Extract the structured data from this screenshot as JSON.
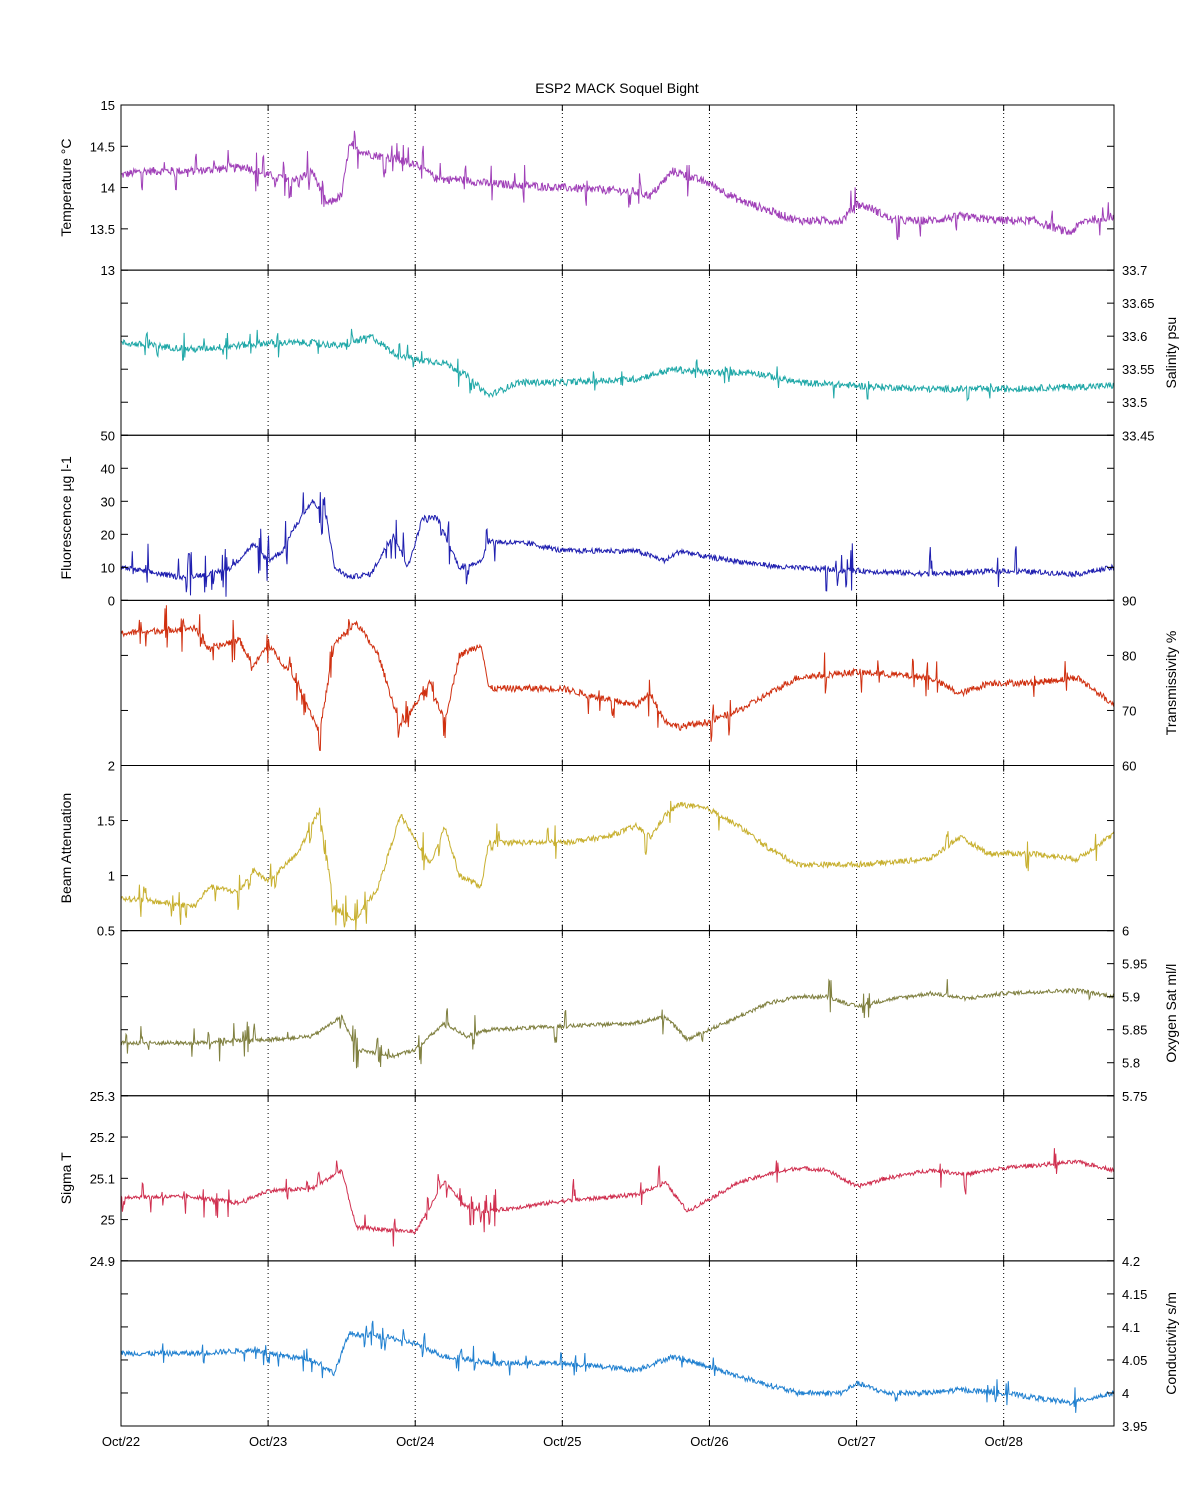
{
  "chart_data": {
    "type": "line",
    "title": "ESP2 MACK  Soquel Bight",
    "x_axis": {
      "type": "date",
      "range": [
        "Oct/22",
        "Oct/28 + 0.75 day"
      ],
      "tick_labels": [
        "Oct/22",
        "Oct/23",
        "Oct/24",
        "Oct/25",
        "Oct/26",
        "Oct/27",
        "Oct/28"
      ],
      "grid": "vertical dotted at each day"
    },
    "panels": [
      {
        "name": "temperature",
        "ylabel": "Temperature °C",
        "side": "left",
        "color": "#a040b8",
        "ylim": [
          13,
          15
        ],
        "ticks": [
          "13",
          "13.5",
          "14",
          "14.5",
          "15"
        ],
        "tick_values": [
          13,
          13.5,
          14,
          14.5,
          15
        ],
        "noise": 0.05,
        "burst_amp": 0.25,
        "keypoints": [
          [
            0,
            14.15
          ],
          [
            0.15,
            14.2
          ],
          [
            0.5,
            14.2
          ],
          [
            0.85,
            14.25
          ],
          [
            1.0,
            14.15
          ],
          [
            1.2,
            14.1
          ],
          [
            1.3,
            14.2
          ],
          [
            1.4,
            13.8
          ],
          [
            1.5,
            13.9
          ],
          [
            1.55,
            14.5
          ],
          [
            1.7,
            14.4
          ],
          [
            1.85,
            14.35
          ],
          [
            2.0,
            14.3
          ],
          [
            2.15,
            14.1
          ],
          [
            2.3,
            14.1
          ],
          [
            2.5,
            14.05
          ],
          [
            3.0,
            14.0
          ],
          [
            3.5,
            13.95
          ],
          [
            3.6,
            13.9
          ],
          [
            3.75,
            14.2
          ],
          [
            4.0,
            14.05
          ],
          [
            4.2,
            13.85
          ],
          [
            4.6,
            13.6
          ],
          [
            4.75,
            13.6
          ],
          [
            4.9,
            13.6
          ],
          [
            5.0,
            13.8
          ],
          [
            5.1,
            13.75
          ],
          [
            5.25,
            13.6
          ],
          [
            5.5,
            13.6
          ],
          [
            5.7,
            13.65
          ],
          [
            6.0,
            13.6
          ],
          [
            6.2,
            13.6
          ],
          [
            6.45,
            13.45
          ],
          [
            6.55,
            13.6
          ],
          [
            6.75,
            13.65
          ]
        ]
      },
      {
        "name": "salinity",
        "ylabel": "Salinity psu",
        "side": "right",
        "color": "#20a8a8",
        "ylim": [
          33.45,
          33.7
        ],
        "ticks": [
          "33.45",
          "33.5",
          "33.55",
          "33.6",
          "33.65",
          "33.7"
        ],
        "tick_values": [
          33.45,
          33.5,
          33.55,
          33.6,
          33.65,
          33.7
        ],
        "noise": 0.005,
        "burst_amp": 0.02,
        "keypoints": [
          [
            0,
            33.59
          ],
          [
            0.5,
            33.58
          ],
          [
            1.0,
            33.59
          ],
          [
            1.3,
            33.59
          ],
          [
            1.5,
            33.585
          ],
          [
            1.7,
            33.6
          ],
          [
            1.85,
            33.575
          ],
          [
            2.0,
            33.565
          ],
          [
            2.2,
            33.56
          ],
          [
            2.35,
            33.54
          ],
          [
            2.5,
            33.51
          ],
          [
            2.7,
            33.53
          ],
          [
            3.0,
            33.53
          ],
          [
            3.5,
            33.535
          ],
          [
            3.75,
            33.55
          ],
          [
            4.0,
            33.545
          ],
          [
            4.3,
            33.545
          ],
          [
            4.6,
            33.53
          ],
          [
            5.0,
            33.525
          ],
          [
            5.5,
            33.52
          ],
          [
            6.0,
            33.52
          ],
          [
            6.75,
            33.525
          ]
        ]
      },
      {
        "name": "fluorescence",
        "ylabel": "Fluorescence µg l-1",
        "side": "left",
        "color": "#2020b0",
        "ylim": [
          0,
          50
        ],
        "ticks": [
          "0",
          "10",
          "20",
          "30",
          "40",
          "50"
        ],
        "tick_values": [
          0,
          10,
          20,
          30,
          40,
          50
        ],
        "noise": 0.8,
        "burst_amp": 8,
        "keypoints": [
          [
            0,
            10
          ],
          [
            0.4,
            7
          ],
          [
            0.6,
            8
          ],
          [
            0.75,
            10
          ],
          [
            0.9,
            17
          ],
          [
            1.0,
            12
          ],
          [
            1.1,
            15
          ],
          [
            1.15,
            20
          ],
          [
            1.3,
            30
          ],
          [
            1.4,
            25
          ],
          [
            1.45,
            10
          ],
          [
            1.55,
            7
          ],
          [
            1.7,
            8
          ],
          [
            1.85,
            20
          ],
          [
            1.95,
            10
          ],
          [
            2.05,
            25
          ],
          [
            2.15,
            25
          ],
          [
            2.3,
            10
          ],
          [
            2.45,
            12
          ],
          [
            2.5,
            18
          ],
          [
            2.8,
            17
          ],
          [
            3.0,
            15
          ],
          [
            3.5,
            15
          ],
          [
            3.7,
            12
          ],
          [
            3.8,
            15
          ],
          [
            4.0,
            13
          ],
          [
            4.5,
            10
          ],
          [
            5.0,
            9
          ],
          [
            5.5,
            8
          ],
          [
            6.0,
            9
          ],
          [
            6.5,
            8
          ],
          [
            6.75,
            10
          ]
        ]
      },
      {
        "name": "transmissivity",
        "ylabel": "Transmissivity %",
        "side": "right",
        "color": "#d03010",
        "ylim": [
          60,
          90
        ],
        "ticks": [
          "60",
          "70",
          "80",
          "90"
        ],
        "tick_values": [
          60,
          70,
          80,
          90
        ],
        "noise": 0.6,
        "burst_amp": 4,
        "keypoints": [
          [
            0,
            84
          ],
          [
            0.5,
            85
          ],
          [
            0.6,
            81
          ],
          [
            0.8,
            83
          ],
          [
            0.9,
            78
          ],
          [
            1.0,
            82
          ],
          [
            1.2,
            75
          ],
          [
            1.35,
            66
          ],
          [
            1.45,
            82
          ],
          [
            1.6,
            86
          ],
          [
            1.75,
            80
          ],
          [
            1.9,
            67
          ],
          [
            2.1,
            75
          ],
          [
            2.2,
            68
          ],
          [
            2.3,
            80
          ],
          [
            2.45,
            82
          ],
          [
            2.5,
            74
          ],
          [
            3.0,
            74
          ],
          [
            3.3,
            72
          ],
          [
            3.5,
            71
          ],
          [
            3.6,
            73
          ],
          [
            3.7,
            68
          ],
          [
            3.8,
            67
          ],
          [
            4.0,
            68
          ],
          [
            4.2,
            70
          ],
          [
            4.4,
            73
          ],
          [
            4.6,
            76
          ],
          [
            5.0,
            77
          ],
          [
            5.5,
            76
          ],
          [
            5.7,
            73
          ],
          [
            5.9,
            75
          ],
          [
            6.2,
            75
          ],
          [
            6.5,
            76
          ],
          [
            6.75,
            71
          ]
        ]
      },
      {
        "name": "beam_attenuation",
        "ylabel": "Beam Attenuation",
        "side": "left",
        "color": "#c8b030",
        "ylim": [
          0.5,
          2
        ],
        "ticks": [
          "0.5",
          "1",
          "1.5",
          "2"
        ],
        "tick_values": [
          0.5,
          1,
          1.5,
          2
        ],
        "noise": 0.025,
        "burst_amp": 0.18,
        "keypoints": [
          [
            0,
            0.8
          ],
          [
            0.5,
            0.72
          ],
          [
            0.6,
            0.9
          ],
          [
            0.8,
            0.85
          ],
          [
            0.9,
            1.05
          ],
          [
            1.0,
            0.95
          ],
          [
            1.2,
            1.2
          ],
          [
            1.35,
            1.6
          ],
          [
            1.45,
            0.7
          ],
          [
            1.6,
            0.6
          ],
          [
            1.75,
            0.9
          ],
          [
            1.9,
            1.55
          ],
          [
            2.1,
            1.1
          ],
          [
            2.2,
            1.45
          ],
          [
            2.3,
            1.0
          ],
          [
            2.45,
            0.9
          ],
          [
            2.5,
            1.3
          ],
          [
            3.0,
            1.3
          ],
          [
            3.3,
            1.35
          ],
          [
            3.5,
            1.45
          ],
          [
            3.6,
            1.35
          ],
          [
            3.7,
            1.55
          ],
          [
            3.8,
            1.65
          ],
          [
            4.0,
            1.6
          ],
          [
            4.2,
            1.45
          ],
          [
            4.4,
            1.25
          ],
          [
            4.6,
            1.1
          ],
          [
            5.0,
            1.1
          ],
          [
            5.5,
            1.15
          ],
          [
            5.7,
            1.35
          ],
          [
            5.9,
            1.2
          ],
          [
            6.2,
            1.2
          ],
          [
            6.5,
            1.15
          ],
          [
            6.75,
            1.38
          ]
        ]
      },
      {
        "name": "oxygen_sat",
        "ylabel": "Oxygen Sat ml/l",
        "side": "right",
        "color": "#808040",
        "ylim": [
          5.75,
          6
        ],
        "ticks": [
          "5.75",
          "5.8",
          "5.85",
          "5.9",
          "5.95",
          "6"
        ],
        "tick_values": [
          5.75,
          5.8,
          5.85,
          5.9,
          5.95,
          6
        ],
        "noise": 0.003,
        "burst_amp": 0.03,
        "keypoints": [
          [
            0,
            5.83
          ],
          [
            0.5,
            5.83
          ],
          [
            1.0,
            5.835
          ],
          [
            1.3,
            5.84
          ],
          [
            1.5,
            5.87
          ],
          [
            1.6,
            5.82
          ],
          [
            1.85,
            5.81
          ],
          [
            2.0,
            5.82
          ],
          [
            2.2,
            5.86
          ],
          [
            2.35,
            5.84
          ],
          [
            2.5,
            5.85
          ],
          [
            3.0,
            5.855
          ],
          [
            3.5,
            5.86
          ],
          [
            3.7,
            5.87
          ],
          [
            3.85,
            5.835
          ],
          [
            4.0,
            5.85
          ],
          [
            4.2,
            5.87
          ],
          [
            4.4,
            5.89
          ],
          [
            4.6,
            5.9
          ],
          [
            4.8,
            5.9
          ],
          [
            5.0,
            5.885
          ],
          [
            5.2,
            5.895
          ],
          [
            5.5,
            5.905
          ],
          [
            5.75,
            5.897
          ],
          [
            6.0,
            5.905
          ],
          [
            6.5,
            5.91
          ],
          [
            6.75,
            5.9
          ]
        ]
      },
      {
        "name": "sigma_t",
        "ylabel": "Sigma T",
        "side": "left",
        "color": "#d03050",
        "ylim": [
          24.9,
          25.3
        ],
        "ticks": [
          "24.9",
          "25",
          "25.1",
          "25.2",
          "25.3"
        ],
        "tick_values": [
          24.9,
          25,
          25.1,
          25.2,
          25.3
        ],
        "noise": 0.005,
        "burst_amp": 0.05,
        "keypoints": [
          [
            0,
            25.055
          ],
          [
            0.5,
            25.055
          ],
          [
            0.8,
            25.04
          ],
          [
            1.0,
            25.07
          ],
          [
            1.3,
            25.075
          ],
          [
            1.5,
            25.12
          ],
          [
            1.6,
            24.98
          ],
          [
            1.85,
            24.975
          ],
          [
            2.0,
            24.97
          ],
          [
            2.2,
            25.09
          ],
          [
            2.35,
            25.03
          ],
          [
            2.5,
            25.02
          ],
          [
            3.0,
            25.045
          ],
          [
            3.5,
            25.06
          ],
          [
            3.7,
            25.09
          ],
          [
            3.85,
            25.02
          ],
          [
            4.0,
            25.05
          ],
          [
            4.2,
            25.09
          ],
          [
            4.4,
            25.11
          ],
          [
            4.6,
            25.125
          ],
          [
            4.8,
            25.12
          ],
          [
            5.0,
            25.08
          ],
          [
            5.2,
            25.1
          ],
          [
            5.5,
            25.12
          ],
          [
            5.75,
            25.11
          ],
          [
            6.0,
            25.125
          ],
          [
            6.5,
            25.14
          ],
          [
            6.75,
            25.12
          ]
        ]
      },
      {
        "name": "conductivity",
        "ylabel": "Conductivity s/m",
        "side": "right",
        "color": "#2080d0",
        "ylim": [
          3.95,
          4.2
        ],
        "ticks": [
          "3.95",
          "4",
          "4.05",
          "4.1",
          "4.15",
          "4.2"
        ],
        "tick_values": [
          3.95,
          4,
          4.05,
          4.1,
          4.15,
          4.2
        ],
        "noise": 0.004,
        "burst_amp": 0.02,
        "keypoints": [
          [
            0,
            4.06
          ],
          [
            0.5,
            4.06
          ],
          [
            0.9,
            4.065
          ],
          [
            1.0,
            4.06
          ],
          [
            1.3,
            4.05
          ],
          [
            1.45,
            4.03
          ],
          [
            1.55,
            4.09
          ],
          [
            1.8,
            4.085
          ],
          [
            2.0,
            4.075
          ],
          [
            2.2,
            4.055
          ],
          [
            2.4,
            4.05
          ],
          [
            2.5,
            4.045
          ],
          [
            3.0,
            4.045
          ],
          [
            3.5,
            4.035
          ],
          [
            3.75,
            4.055
          ],
          [
            4.0,
            4.04
          ],
          [
            4.2,
            4.025
          ],
          [
            4.6,
            4.0
          ],
          [
            4.9,
            4.0
          ],
          [
            5.0,
            4.015
          ],
          [
            5.2,
            4.0
          ],
          [
            5.5,
            4.0
          ],
          [
            5.7,
            4.005
          ],
          [
            6.0,
            4.0
          ],
          [
            6.45,
            3.985
          ],
          [
            6.75,
            4.0
          ]
        ]
      }
    ]
  }
}
